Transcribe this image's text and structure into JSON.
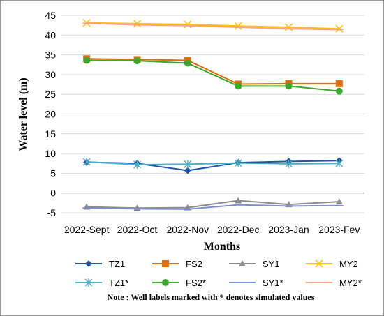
{
  "chart_data": {
    "type": "line",
    "categories": [
      "2022-Sept",
      "2022-Oct",
      "2022-Nov",
      "2022-Dec",
      "2023-Jan",
      "2023-Fev"
    ],
    "xlabel": "Months",
    "ylabel": "Water level (m)",
    "ylim": [
      -5,
      45
    ],
    "yticks": [
      -5,
      0,
      5,
      10,
      15,
      20,
      25,
      30,
      35,
      40,
      45
    ],
    "grid": "horizontal",
    "legend_position": "bottom",
    "note": "Note : Well labels marked with * denotes simulated values",
    "series": [
      {
        "name": "TZ1",
        "color": "#1f56a6",
        "marker": "diamond",
        "values": [
          7.8,
          7.5,
          5.7,
          7.7,
          8.0,
          8.2
        ]
      },
      {
        "name": "FS2",
        "color": "#e46c0a",
        "marker": "square",
        "values": [
          34.0,
          33.8,
          33.6,
          27.6,
          27.7,
          27.7
        ]
      },
      {
        "name": "SY1",
        "color": "#8c8c8c",
        "marker": "triangle",
        "values": [
          -3.5,
          -3.8,
          -3.7,
          -1.9,
          -2.9,
          -2.2
        ]
      },
      {
        "name": "MY2",
        "color": "#ffc000",
        "marker": "x",
        "values": [
          43.1,
          42.9,
          42.7,
          42.3,
          42.0,
          41.6
        ]
      },
      {
        "name": "TZ1*",
        "color": "#4bacc6",
        "marker": "star",
        "values": [
          7.9,
          7.2,
          7.3,
          7.6,
          7.4,
          7.5
        ]
      },
      {
        "name": "FS2*",
        "color": "#3aa82c",
        "marker": "circle",
        "values": [
          33.6,
          33.5,
          32.9,
          27.1,
          27.1,
          25.8
        ]
      },
      {
        "name": "SY1*",
        "color": "#7b8fd0",
        "marker": "dash",
        "values": [
          -3.8,
          -4.0,
          -4.1,
          -3.0,
          -3.3,
          -3.2
        ]
      },
      {
        "name": "MY2*",
        "color": "#f4a28a",
        "marker": "dash",
        "values": [
          43.0,
          42.6,
          42.4,
          42.0,
          41.6,
          41.4
        ]
      }
    ]
  }
}
